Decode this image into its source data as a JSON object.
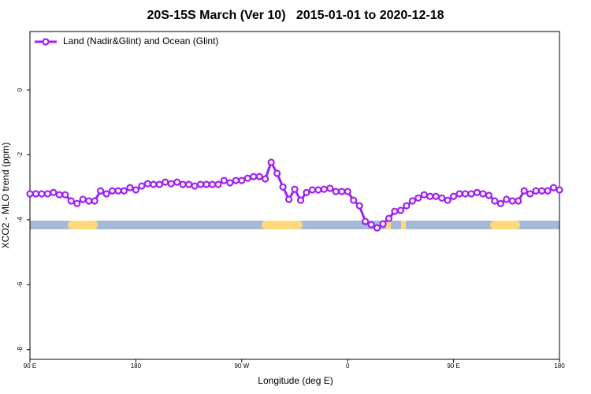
{
  "chart_data": {
    "type": "line",
    "title": "20S-15S March (Ver 10)   2015-01-01 to 2020-12-18",
    "x_label": "Longitude (deg E)",
    "y_label": "XCO2 - MLO trend (ppm)",
    "xlim": [
      90,
      540
    ],
    "ylim": [
      -8.3,
      1.8
    ],
    "xticks": [
      {
        "value": 90,
        "label": "90 E"
      },
      180,
      {
        "value": 270,
        "label": "90 W"
      },
      {
        "value": 360,
        "label": "0"
      },
      {
        "value": 450,
        "label": "90 E"
      },
      {
        "value": 540,
        "label": "180"
      }
    ],
    "yticks": [
      0,
      -2,
      -4,
      -6,
      -8
    ],
    "legend": "top-left",
    "x": [
      90,
      95,
      100,
      105,
      110,
      115,
      120,
      125,
      130,
      135,
      140,
      145,
      150,
      155,
      160,
      165,
      170,
      175,
      180,
      185,
      190,
      195,
      200,
      205,
      210,
      215,
      220,
      225,
      230,
      235,
      240,
      245,
      250,
      255,
      260,
      265,
      270,
      275,
      280,
      285,
      290,
      295,
      300,
      305,
      310,
      315,
      320,
      325,
      330,
      335,
      340,
      345,
      350,
      355,
      360,
      365,
      370,
      375,
      380,
      385,
      390,
      395,
      400,
      405,
      410,
      415,
      420,
      425,
      430,
      435,
      440,
      445,
      450,
      455,
      460,
      465,
      470,
      475,
      480,
      485,
      490,
      495,
      500,
      505,
      510,
      515,
      520,
      525,
      530,
      535,
      540
    ],
    "series": [
      {
        "name": "Land (Nadir&Glint) and Ocean (Glint)",
        "color": "#a020f0",
        "values": [
          -3.2,
          -3.2,
          -3.2,
          -3.2,
          -3.16,
          -3.23,
          -3.23,
          -3.42,
          -3.5,
          -3.37,
          -3.42,
          -3.42,
          -3.11,
          -3.2,
          -3.11,
          -3.11,
          -3.11,
          -3.01,
          -3.08,
          -2.96,
          -2.89,
          -2.91,
          -2.91,
          -2.84,
          -2.89,
          -2.84,
          -2.91,
          -2.91,
          -2.96,
          -2.91,
          -2.91,
          -2.91,
          -2.91,
          -2.79,
          -2.86,
          -2.79,
          -2.79,
          -2.72,
          -2.67,
          -2.67,
          -2.74,
          -2.23,
          -2.57,
          -2.99,
          -3.37,
          -3.06,
          -3.4,
          -3.16,
          -3.08,
          -3.08,
          -3.06,
          -3.03,
          -3.13,
          -3.13,
          -3.13,
          -3.4,
          -3.57,
          -4.05,
          -4.15,
          -4.25,
          -4.13,
          -3.96,
          -3.74,
          -3.71,
          -3.57,
          -3.42,
          -3.33,
          -3.23,
          -3.28,
          -3.28,
          -3.33,
          -3.4,
          -3.28,
          -3.2,
          -3.2,
          -3.2,
          -3.16,
          -3.2,
          -3.25,
          -3.42,
          -3.5,
          -3.37,
          -3.42,
          -3.42,
          -3.11,
          -3.2,
          -3.11,
          -3.11,
          -3.11,
          -3.01,
          -3.08
        ]
      }
    ]
  }
}
